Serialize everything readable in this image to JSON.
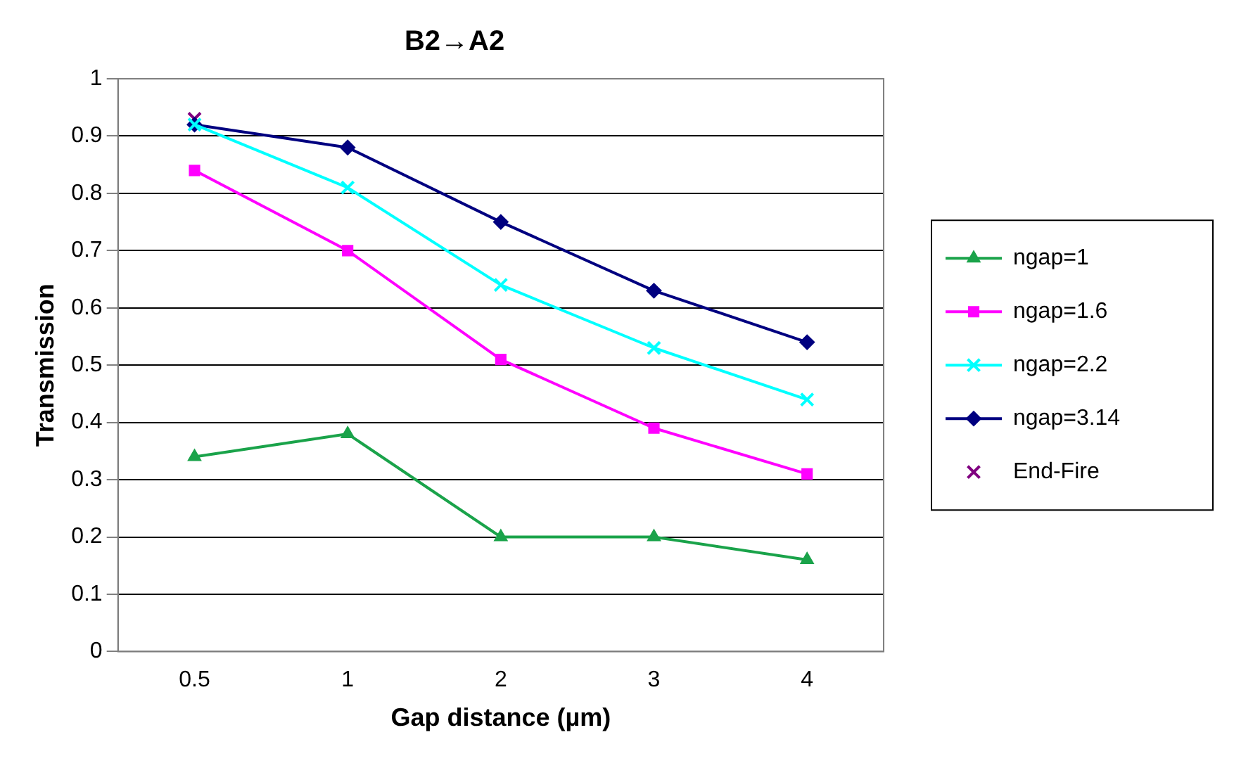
{
  "chart_data": {
    "type": "line",
    "title": "B2→A2",
    "xlabel": "Gap distance (µm)",
    "ylabel": "Transmission",
    "categories": [
      "0.5",
      "1",
      "2",
      "3",
      "4"
    ],
    "series": [
      {
        "name": "ngap=1",
        "color": "#1aa34a",
        "marker": "triangle",
        "values": [
          0.34,
          0.38,
          0.2,
          0.2,
          0.16
        ]
      },
      {
        "name": "ngap=1.6",
        "color": "#ff00ff",
        "marker": "square",
        "values": [
          0.84,
          0.7,
          0.51,
          0.39,
          0.31
        ]
      },
      {
        "name": "ngap=2.2",
        "color": "#00ffff",
        "marker": "cross",
        "values": [
          0.92,
          0.81,
          0.64,
          0.53,
          0.44
        ]
      },
      {
        "name": "ngap=3.14",
        "color": "#000080",
        "marker": "diamond",
        "values": [
          0.92,
          0.88,
          0.75,
          0.63,
          0.54
        ]
      },
      {
        "name": "End-Fire",
        "type": "scatter",
        "color": "#800080",
        "marker": "cross",
        "values": [
          0.93,
          null,
          null,
          null,
          null
        ]
      }
    ],
    "ylim": [
      0,
      1
    ],
    "yticks": [
      0,
      0.1,
      0.2,
      0.3,
      0.4,
      0.5,
      0.6,
      0.7,
      0.8,
      0.9,
      1
    ],
    "grid": "y",
    "legend": "right",
    "line_style": "solid"
  }
}
